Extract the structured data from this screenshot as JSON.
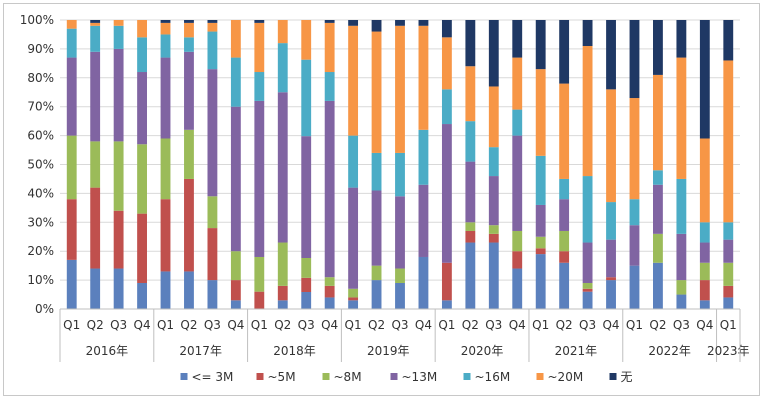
{
  "chart_data": {
    "type": "bar",
    "stacked": true,
    "percent": true,
    "ylim": [
      0,
      100
    ],
    "yticks": [
      "0%",
      "10%",
      "20%",
      "30%",
      "40%",
      "50%",
      "60%",
      "70%",
      "80%",
      "90%",
      "100%"
    ],
    "grid": true,
    "legend_position": "bottom",
    "categories": [
      "Q1",
      "Q2",
      "Q3",
      "Q4",
      "Q1",
      "Q2",
      "Q3",
      "Q4",
      "Q1",
      "Q2",
      "Q3",
      "Q4",
      "Q1",
      "Q2",
      "Q3",
      "Q4",
      "Q1",
      "Q2",
      "Q3",
      "Q4",
      "Q1",
      "Q2",
      "Q3",
      "Q4",
      "Q1",
      "Q2",
      "Q3",
      "Q4",
      "Q1"
    ],
    "years": [
      {
        "label": "2016年",
        "count": 4
      },
      {
        "label": "2017年",
        "count": 4
      },
      {
        "label": "2018年",
        "count": 4
      },
      {
        "label": "2019年",
        "count": 4
      },
      {
        "label": "2020年",
        "count": 4
      },
      {
        "label": "2021年",
        "count": 4
      },
      {
        "label": "2022年",
        "count": 4
      },
      {
        "label": "2023年",
        "count": 1
      }
    ],
    "series": [
      {
        "name": "<= 3M",
        "color": "#5b80bd",
        "values": [
          17,
          14,
          14,
          9,
          13,
          13,
          10,
          3,
          0,
          3,
          6,
          4,
          3,
          10,
          9,
          18,
          3,
          23,
          23,
          14,
          19,
          16,
          6,
          10,
          15,
          16,
          5,
          3,
          4
        ]
      },
      {
        "name": "~5M",
        "color": "#c0504d",
        "values": [
          21,
          28,
          20,
          24,
          25,
          32,
          18,
          7,
          6,
          5,
          5,
          4,
          1,
          0,
          0,
          0,
          13,
          4,
          3,
          6,
          2,
          4,
          1,
          1,
          0,
          0,
          0,
          7,
          4
        ]
      },
      {
        "name": "~8M",
        "color": "#9bbb59",
        "values": [
          22,
          16,
          24,
          24,
          21,
          17,
          11,
          10,
          12,
          15,
          7,
          3,
          3,
          5,
          5,
          0,
          0,
          3,
          3,
          7,
          4,
          7,
          2,
          0,
          0,
          10,
          5,
          6,
          8
        ]
      },
      {
        "name": "~13M",
        "color": "#8064a2",
        "values": [
          27,
          31,
          32,
          25,
          28,
          27,
          44,
          50,
          54,
          52,
          43,
          61,
          35,
          26,
          25,
          25,
          48,
          21,
          17,
          33,
          11,
          11,
          14,
          13,
          14,
          17,
          16,
          7,
          8
        ]
      },
      {
        "name": "~16M",
        "color": "#4bacc6",
        "values": [
          10,
          9,
          8,
          12,
          8,
          5,
          13,
          17,
          10,
          17,
          27,
          10,
          18,
          13,
          15,
          19,
          12,
          14,
          10,
          9,
          17,
          7,
          23,
          13,
          9,
          5,
          19,
          7,
          6
        ]
      },
      {
        "name": "~20M",
        "color": "#f79646",
        "values": [
          3,
          1,
          2,
          6,
          4,
          5,
          3,
          13,
          17,
          8,
          14,
          17,
          38,
          42,
          44,
          36,
          18,
          19,
          21,
          18,
          30,
          33,
          45,
          39,
          35,
          33,
          42,
          29,
          56
        ]
      },
      {
        "name": "无",
        "color": "#1f3864",
        "values": [
          0,
          1,
          0,
          0,
          1,
          1,
          1,
          0,
          1,
          0,
          0,
          1,
          2,
          4,
          2,
          2,
          6,
          16,
          23,
          13,
          17,
          22,
          9,
          24,
          27,
          19,
          13,
          41,
          14
        ]
      }
    ]
  }
}
